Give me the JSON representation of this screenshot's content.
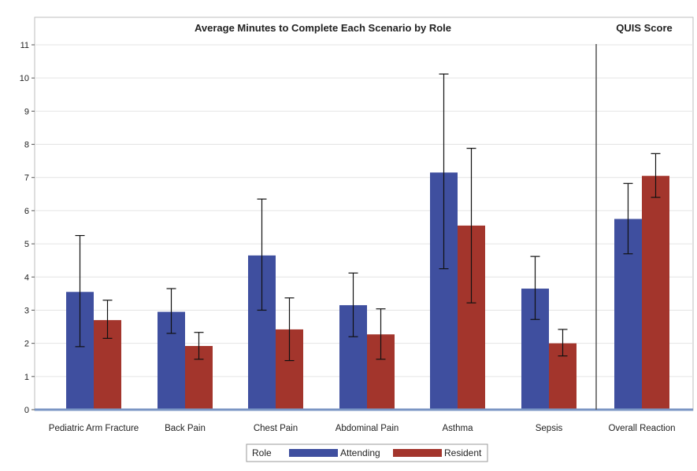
{
  "chart_data": {
    "type": "bar",
    "title": "Average Minutes to Complete Each Scenario by Role",
    "panel_title": "QUIS Score",
    "categories": [
      "Pediatric Arm Fracture",
      "Back Pain",
      "Chest Pain",
      "Abdominal Pain",
      "Asthma",
      "Sepsis",
      "Overall Reaction"
    ],
    "series": [
      {
        "name": "Attending",
        "color": "#3f4f9f",
        "values": [
          3.55,
          2.95,
          4.65,
          3.15,
          7.15,
          3.65,
          5.75
        ],
        "error_low": [
          1.9,
          2.3,
          3.0,
          2.2,
          4.25,
          2.72,
          4.7
        ],
        "error_high": [
          5.25,
          3.65,
          6.35,
          4.12,
          10.12,
          4.62,
          6.82
        ]
      },
      {
        "name": "Resident",
        "color": "#a3352c",
        "values": [
          2.7,
          1.92,
          2.42,
          2.27,
          5.55,
          2.0,
          7.05
        ],
        "error_low": [
          2.15,
          1.52,
          1.48,
          1.52,
          3.22,
          1.62,
          6.4
        ],
        "error_high": [
          3.3,
          2.33,
          3.37,
          3.04,
          7.88,
          2.42,
          7.72
        ]
      }
    ],
    "ylim": [
      0,
      11
    ],
    "yticks": [
      "0",
      "1",
      "2",
      "3",
      "4",
      "5",
      "6",
      "7",
      "8",
      "9",
      "10",
      "11"
    ],
    "grid": true,
    "legend": {
      "title": "Role",
      "placement": "bottom-center"
    }
  }
}
